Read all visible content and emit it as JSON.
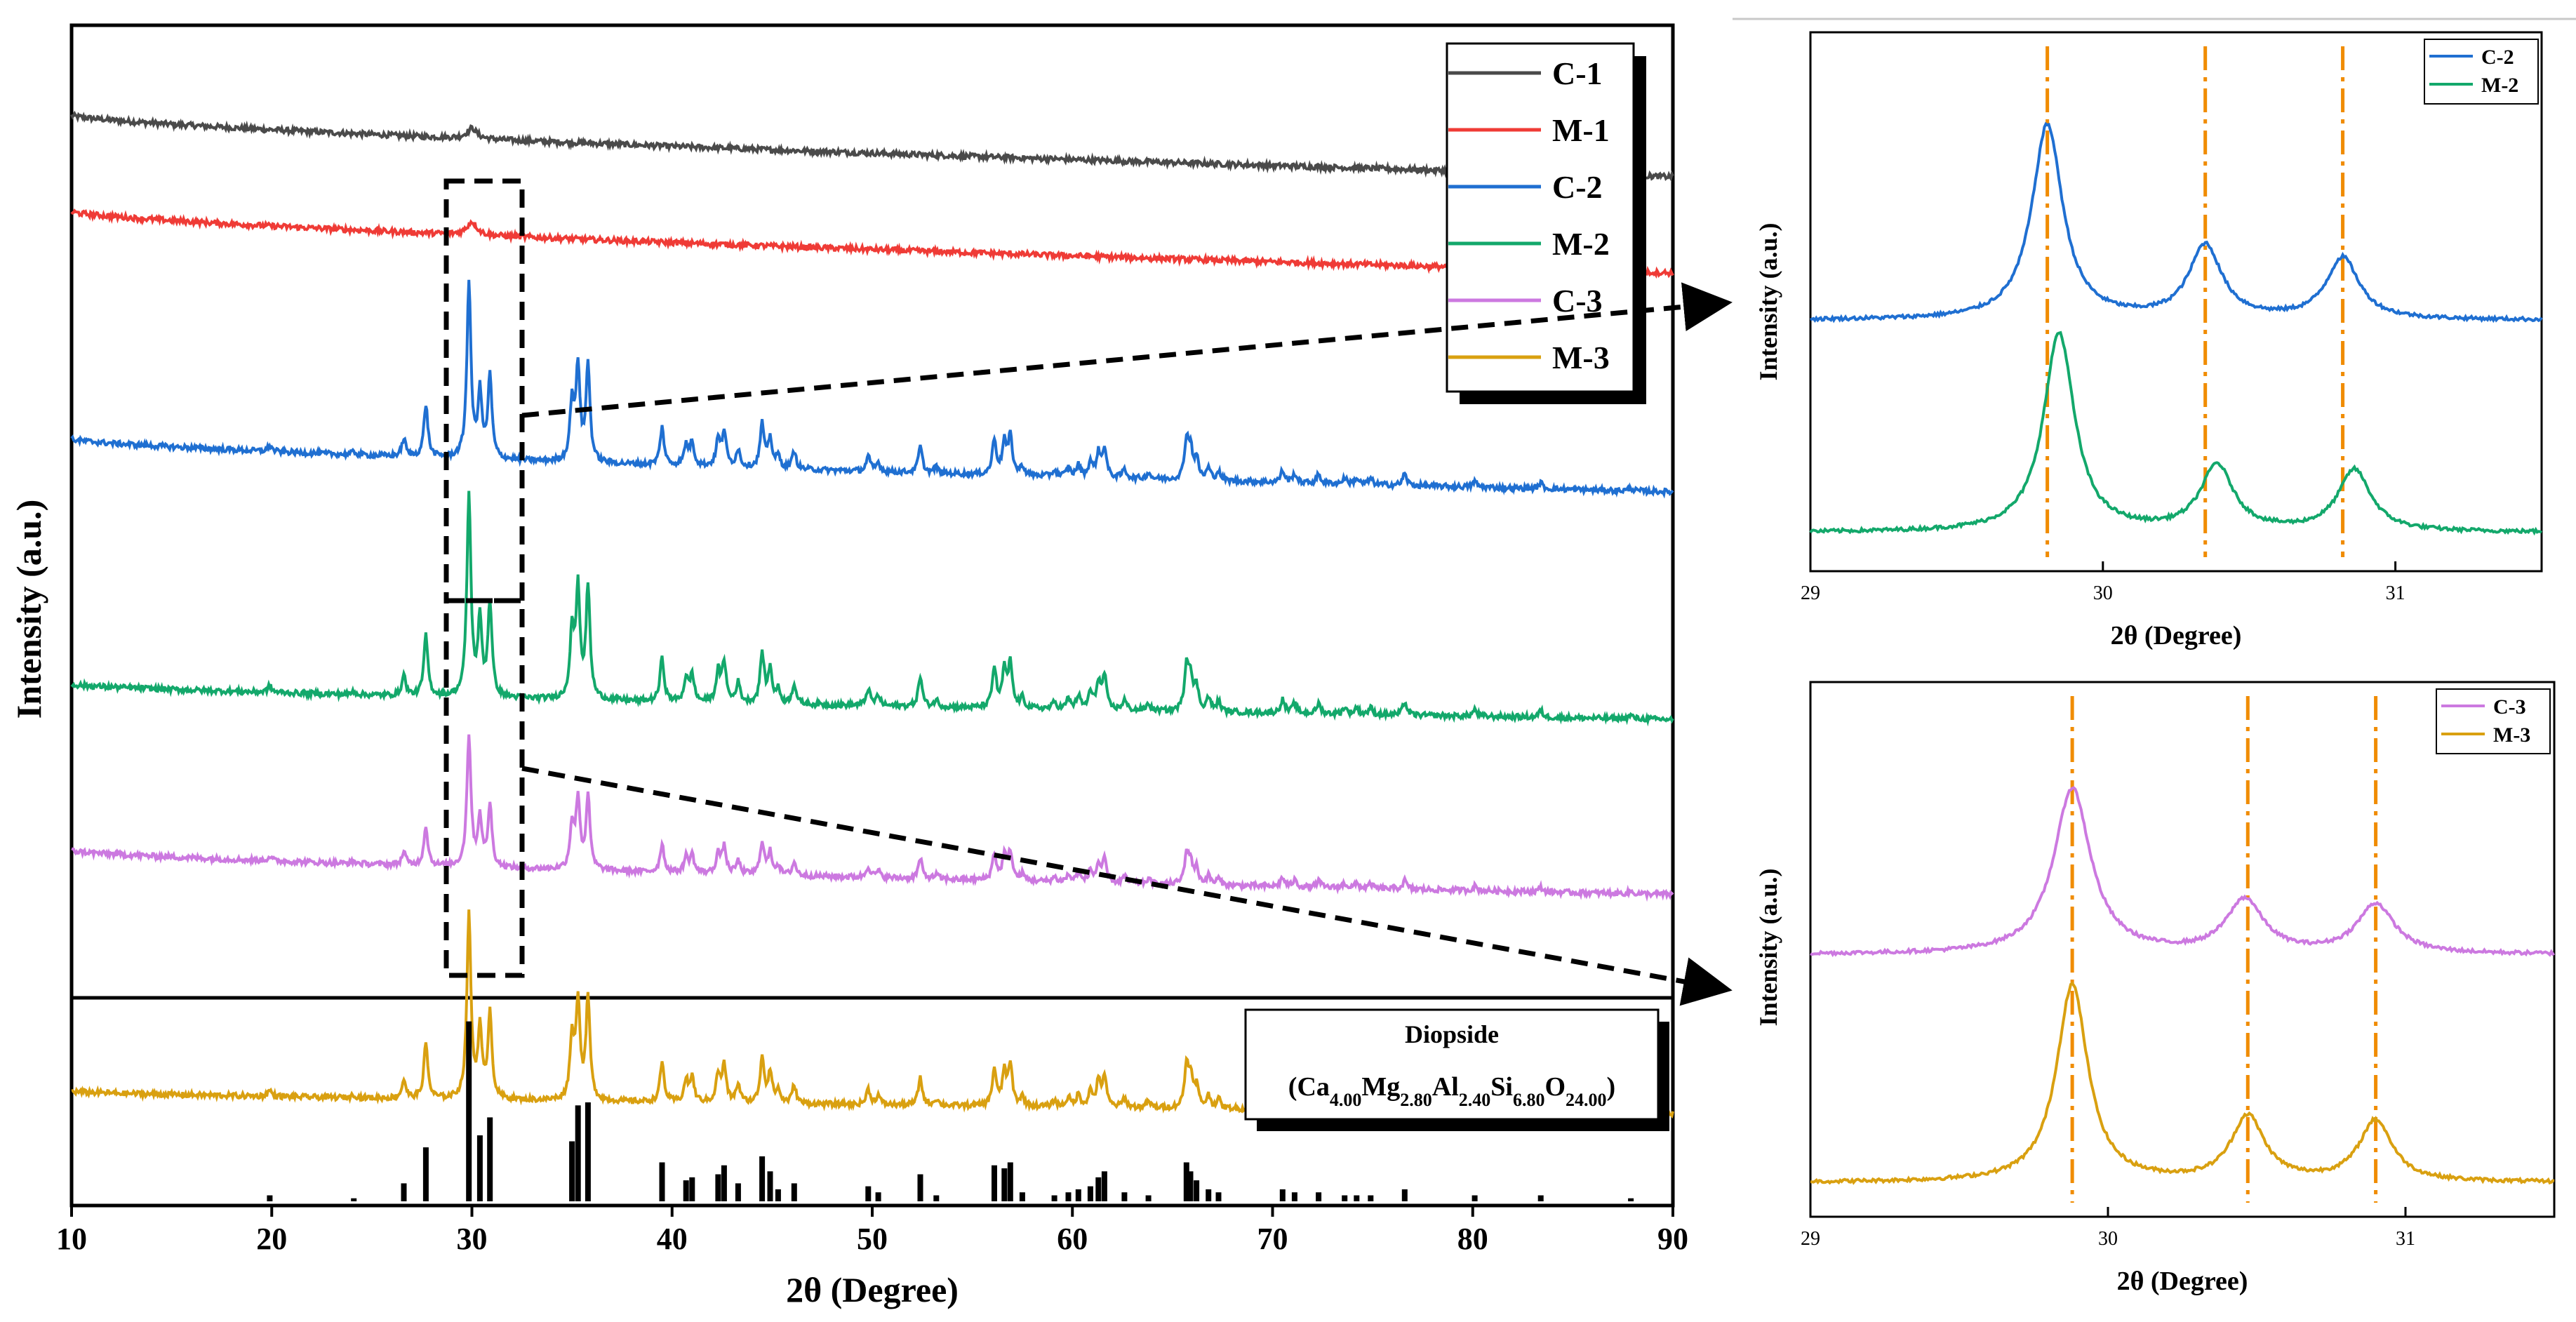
{
  "colors": {
    "C-1": "#4a4a4a",
    "M-1": "#ef3b36",
    "C-2": "#1f6fd1",
    "M-2": "#13a86b",
    "C-3": "#cc79e0",
    "M-3": "#d9a010",
    "guide": "#f08c00",
    "reference": "#000000"
  },
  "chart_data": [
    {
      "id": "main",
      "type": "line",
      "title": "",
      "xlabel": "2θ (Degree)",
      "ylabel": "Intensity (a.u.)",
      "xlim": [
        10,
        90
      ],
      "xticks": [
        "10",
        "20",
        "30",
        "40",
        "50",
        "60",
        "70",
        "80",
        "90"
      ],
      "xtick_values": [
        10,
        20,
        30,
        40,
        50,
        60,
        70,
        80,
        90
      ],
      "yticks": "none",
      "legend": {
        "position": "top-right",
        "entries": [
          "C-1",
          "M-1",
          "C-2",
          "M-2",
          "C-3",
          "M-3"
        ]
      },
      "zoom_box": {
        "x_range": [
          28.5,
          32.5
        ]
      },
      "series": [
        {
          "name": "C-1",
          "offset": 0.96,
          "baseline_start": 0.96,
          "baseline_end": 0.89,
          "peaks": [
            [
              30.0,
              0.012,
              0.3
            ]
          ]
        },
        {
          "name": "M-1",
          "offset": 0.85,
          "baseline_start": 0.85,
          "baseline_end": 0.78,
          "peaks": [
            [
              30.0,
              0.015,
              0.3
            ]
          ]
        },
        {
          "name": "C-2",
          "offset": 0.59,
          "baseline_start": 0.59,
          "baseline_end": 0.53,
          "scale": 0.2
        },
        {
          "name": "M-2",
          "offset": 0.31,
          "baseline_start": 0.31,
          "baseline_end": 0.27,
          "scale": 0.23
        },
        {
          "name": "C-3",
          "offset": 0.12,
          "baseline_start": 0.12,
          "baseline_end": 0.07,
          "scale": 0.15
        },
        {
          "name": "M-3",
          "offset": -0.155,
          "baseline_start": -0.155,
          "baseline_end": -0.18,
          "scale": 0.21
        }
      ]
    },
    {
      "id": "reference",
      "type": "bar",
      "series_name": "Diopside",
      "legend_title": "Diopside",
      "formula_parts": [
        "(Ca",
        "4.00",
        "Mg",
        "2.80",
        "Al",
        "2.40",
        "Si",
        "6.80",
        "O",
        "24.00",
        ")"
      ],
      "x": [
        19.9,
        24.1,
        26.6,
        27.7,
        29.85,
        30.4,
        30.9,
        35.0,
        35.3,
        35.8,
        39.5,
        40.7,
        41.0,
        42.3,
        42.6,
        43.3,
        44.5,
        44.9,
        45.3,
        46.1,
        49.8,
        50.3,
        52.4,
        53.2,
        56.1,
        56.6,
        56.9,
        57.5,
        59.1,
        59.8,
        60.3,
        60.9,
        61.3,
        61.6,
        62.6,
        63.8,
        65.7,
        65.9,
        66.2,
        66.8,
        67.3,
        70.5,
        71.1,
        72.3,
        73.6,
        74.2,
        74.9,
        76.6,
        80.1,
        83.4,
        87.9
      ],
      "values": [
        2,
        1,
        6,
        18,
        60,
        22,
        28,
        20,
        32,
        33,
        13,
        7,
        8,
        9,
        12,
        6,
        15,
        10,
        4,
        6,
        5,
        3,
        9,
        2,
        12,
        11,
        13,
        3,
        2,
        3,
        4,
        5,
        8,
        10,
        3,
        2,
        13,
        10,
        7,
        4,
        3,
        4,
        3,
        3,
        2,
        2,
        2,
        4,
        2,
        2,
        1
      ],
      "xlim": [
        10,
        90
      ],
      "ylim": [
        0,
        66
      ]
    },
    {
      "id": "inset_top",
      "type": "line",
      "xlabel": "2θ (Degree)",
      "ylabel": "Intensity (a.u.)",
      "xlim": [
        29,
        31.5
      ],
      "xticks": [
        "29",
        "30",
        "31"
      ],
      "xtick_values": [
        29,
        30,
        31
      ],
      "legend": {
        "position": "top-right",
        "entries": [
          "C-2",
          "M-2"
        ]
      },
      "guides_x": [
        29.81,
        30.35,
        30.82
      ],
      "series": [
        {
          "name": "C-2",
          "baseline": 0.52,
          "peaks": [
            [
              29.81,
              0.98,
              0.085
            ],
            [
              30.35,
              0.37,
              0.09
            ],
            [
              30.82,
              0.31,
              0.09
            ]
          ]
        },
        {
          "name": "M-2",
          "baseline": 0.04,
          "peaks": [
            [
              29.85,
              1.0,
              0.085
            ],
            [
              30.39,
              0.33,
              0.09
            ],
            [
              30.86,
              0.31,
              0.09
            ]
          ]
        }
      ]
    },
    {
      "id": "inset_bottom",
      "type": "line",
      "xlabel": "2θ (Degree)",
      "ylabel": "Intensity (a.u.)",
      "xlim": [
        29,
        31.5
      ],
      "xticks": [
        "29",
        "30",
        "31"
      ],
      "xtick_values": [
        29,
        30,
        31
      ],
      "legend": {
        "position": "top-right",
        "entries": [
          "C-3",
          "M-3"
        ]
      },
      "guides_x": [
        29.88,
        30.47,
        30.9
      ],
      "series": [
        {
          "name": "C-3",
          "baseline": 0.55,
          "peaks": [
            [
              29.88,
              0.84,
              0.1
            ],
            [
              30.46,
              0.27,
              0.1
            ],
            [
              30.9,
              0.25,
              0.1
            ]
          ]
        },
        {
          "name": "M-3",
          "baseline": 0.03,
          "peaks": [
            [
              29.88,
              1.0,
              0.085
            ],
            [
              30.47,
              0.33,
              0.09
            ],
            [
              30.9,
              0.31,
              0.09
            ]
          ]
        }
      ]
    }
  ]
}
